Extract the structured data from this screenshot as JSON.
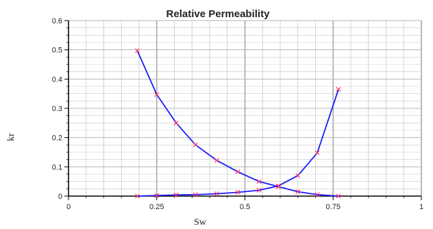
{
  "chart_data": {
    "type": "line",
    "title": "Relative Permeability",
    "xlabel": "Sw",
    "ylabel": "kr",
    "xlim": [
      0,
      1
    ],
    "ylim": [
      0,
      0.6
    ],
    "xticks": [
      "0",
      "0.25",
      "0.5",
      "0.75",
      "1"
    ],
    "yticks": [
      "0",
      "0.1",
      "0.2",
      "0.3",
      "0.4",
      "0.5",
      "0.6"
    ],
    "grid": true,
    "legend": "none",
    "colors": {
      "line": "#1a1aff",
      "marker": "#ff3366",
      "grid": "#c8c8c8"
    },
    "series": [
      {
        "x": [
          0.195,
          0.25,
          0.305,
          0.36,
          0.42,
          0.48,
          0.54,
          0.595,
          0.65,
          0.705,
          0.765
        ],
        "y": [
          0.497,
          0.347,
          0.25,
          0.175,
          0.122,
          0.083,
          0.05,
          0.032,
          0.015,
          0.005,
          0.0
        ]
      },
      {
        "x": [
          0.195,
          0.25,
          0.305,
          0.36,
          0.42,
          0.48,
          0.54,
          0.595,
          0.65,
          0.705,
          0.765
        ],
        "y": [
          0.0,
          0.002,
          0.004,
          0.005,
          0.008,
          0.013,
          0.02,
          0.035,
          0.07,
          0.148,
          0.365
        ]
      }
    ]
  }
}
